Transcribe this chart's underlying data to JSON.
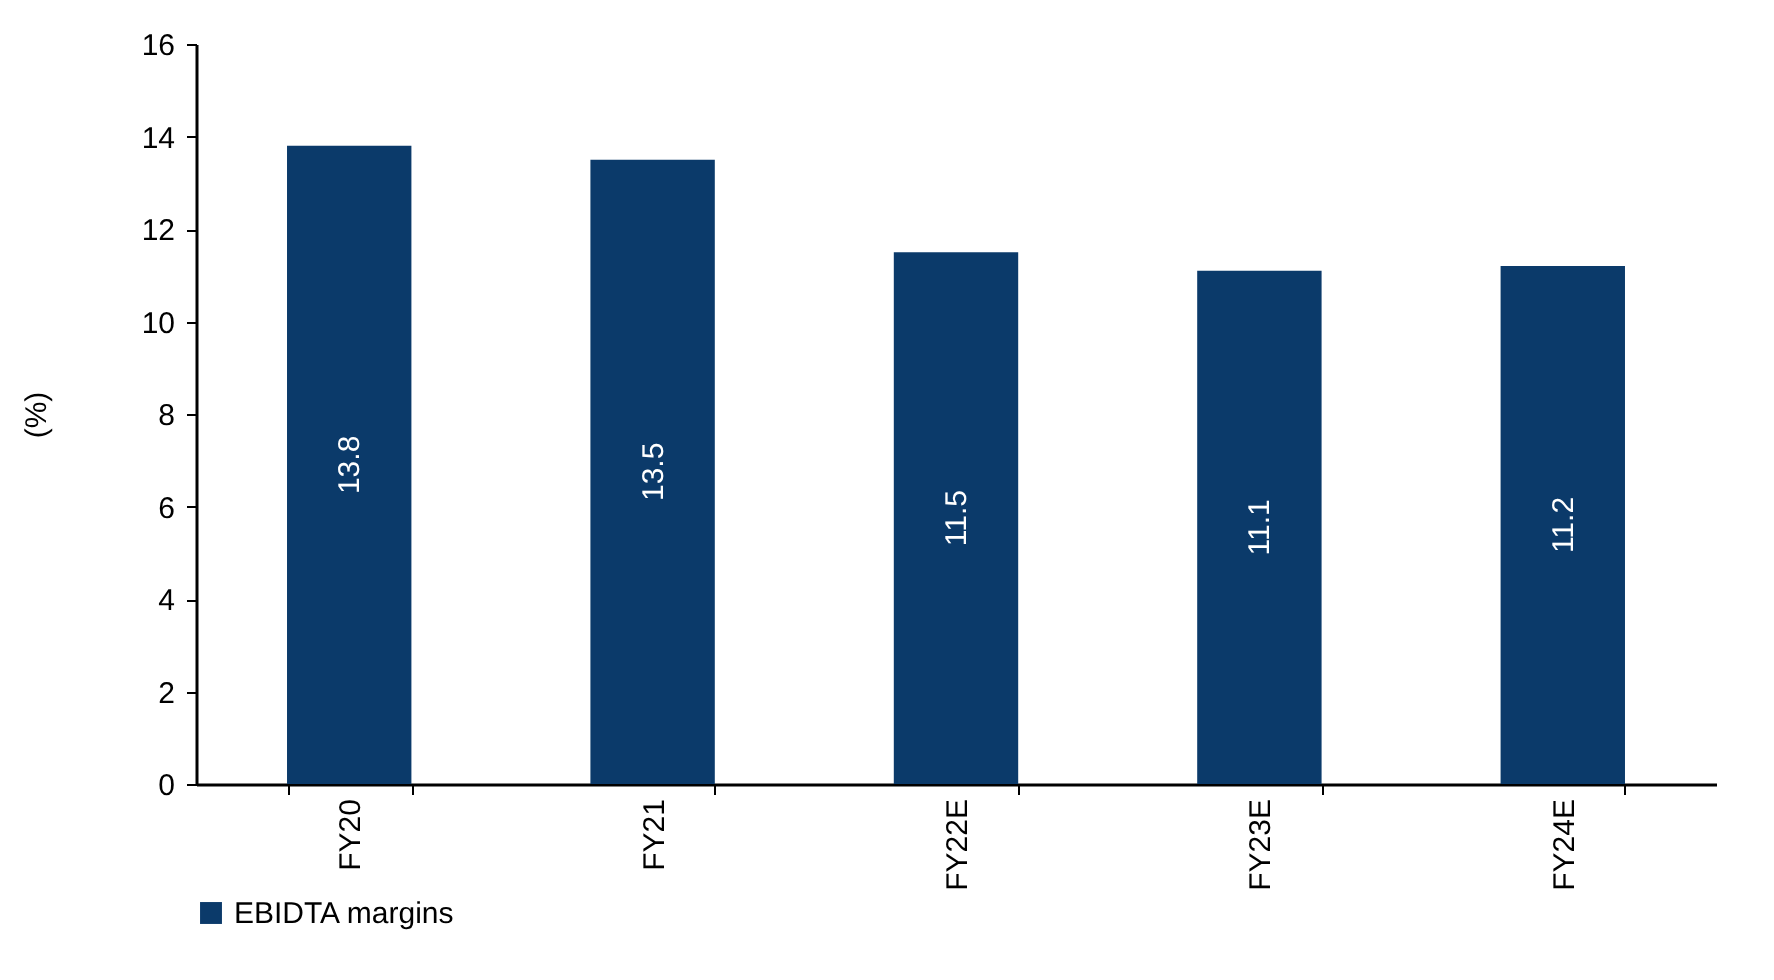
{
  "chart_data": {
    "type": "bar",
    "ylabel": "(%)",
    "categories": [
      "FY20",
      "FY21",
      "FY22E",
      "FY23E",
      "FY24E"
    ],
    "series": [
      {
        "name": "EBIDTA margins",
        "color": "#0b3a6a",
        "values": [
          13.8,
          13.5,
          11.5,
          11.1,
          11.2
        ]
      }
    ],
    "ylim": [
      0,
      16
    ],
    "yticks": [
      0,
      2,
      4,
      6,
      8,
      10,
      12,
      14,
      16
    ],
    "grid": false,
    "legend": "bottom",
    "data_labels": true
  }
}
